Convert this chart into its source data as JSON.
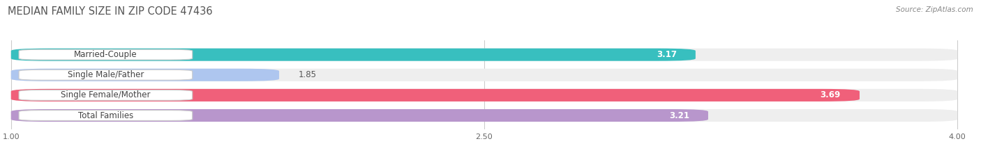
{
  "title": "MEDIAN FAMILY SIZE IN ZIP CODE 47436",
  "source": "Source: ZipAtlas.com",
  "categories": [
    "Married-Couple",
    "Single Male/Father",
    "Single Female/Mother",
    "Total Families"
  ],
  "values": [
    3.17,
    1.85,
    3.69,
    3.21
  ],
  "bar_colors": [
    "#38bfbf",
    "#aec6ef",
    "#f0607a",
    "#b896cc"
  ],
  "bar_bg_color": "#eeeeee",
  "xlim_min": 1.0,
  "xlim_max": 4.0,
  "xticks": [
    1.0,
    2.5,
    4.0
  ],
  "xtick_labels": [
    "1.00",
    "2.50",
    "4.00"
  ],
  "title_fontsize": 10.5,
  "source_fontsize": 7.5,
  "label_fontsize": 8.5,
  "value_fontsize": 8.5,
  "bar_height": 0.62,
  "background_color": "#ffffff",
  "grid_color": "#cccccc",
  "label_box_color": "#ffffff",
  "label_text_color": "#444444",
  "value_color_inside": "#ffffff",
  "value_color_outside": "#555555"
}
